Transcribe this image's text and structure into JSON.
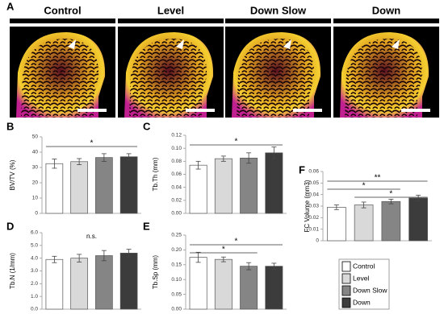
{
  "panel_a": {
    "letter": "A",
    "labels": [
      "Control",
      "Level",
      "Down Slow",
      "Down"
    ]
  },
  "groups": [
    {
      "name": "Control",
      "color": "#ffffff"
    },
    {
      "name": "Level",
      "color": "#d9d9d9"
    },
    {
      "name": "Down Slow",
      "color": "#858585"
    },
    {
      "name": "Down",
      "color": "#3c3c3c"
    }
  ],
  "chart_data": [
    {
      "type": "bar",
      "panel": "B",
      "ylabel": "BV/TV (%)",
      "values": [
        32.5,
        33.8,
        36.5,
        37
      ],
      "errors": [
        3,
        2,
        2.5,
        2
      ],
      "ylim": [
        0,
        50
      ],
      "yticks": [
        0,
        10,
        20,
        30,
        40,
        50
      ],
      "significance": [
        {
          "from": 0,
          "to": 3,
          "label": "*"
        }
      ]
    },
    {
      "type": "bar",
      "panel": "C",
      "ylabel": "Tb.Th (mm)",
      "values": [
        0.074,
        0.084,
        0.085,
        0.093
      ],
      "errors": [
        0.006,
        0.004,
        0.008,
        0.009
      ],
      "ylim": [
        0,
        0.12
      ],
      "yticks": [
        {
          "value": 0,
          "label": "0.00"
        },
        {
          "value": 0.02,
          "label": "0.02"
        },
        {
          "value": 0.04,
          "label": "0.04"
        },
        {
          "value": 0.06,
          "label": "0.06"
        },
        {
          "value": 0.08,
          "label": "0.08"
        },
        {
          "value": 0.1,
          "label": "0.10"
        },
        {
          "value": 0.12,
          "label": "0.12"
        }
      ],
      "significance": [
        {
          "from": 0,
          "to": 3,
          "label": "*"
        }
      ]
    },
    {
      "type": "bar",
      "panel": "D",
      "ylabel": "Tb.N (1/mm)",
      "values": [
        3.9,
        4.0,
        4.2,
        4.4
      ],
      "errors": [
        0.25,
        0.3,
        0.4,
        0.3
      ],
      "ylim": [
        0,
        6
      ],
      "yticks": [
        {
          "value": 0,
          "label": "0.0"
        },
        {
          "value": 1,
          "label": "1.0"
        },
        {
          "value": 2,
          "label": "2.0"
        },
        {
          "value": 3,
          "label": "3.0"
        },
        {
          "value": 4,
          "label": "4.0"
        },
        {
          "value": 5,
          "label": "5.0"
        },
        {
          "value": 6,
          "label": "6.0"
        }
      ],
      "annotation": "n.s.",
      "significance": []
    },
    {
      "type": "bar",
      "panel": "E",
      "ylabel": "Tb.Sp (mm)",
      "values": [
        0.175,
        0.168,
        0.145,
        0.145
      ],
      "errors": [
        0.017,
        0.008,
        0.012,
        0.01
      ],
      "ylim": [
        0,
        0.25
      ],
      "yticks": [
        {
          "value": 0,
          "label": "0.00"
        },
        {
          "value": 0.05,
          "label": "0.05"
        },
        {
          "value": 0.1,
          "label": "0.10"
        },
        {
          "value": 0.15,
          "label": "0.15"
        },
        {
          "value": 0.2,
          "label": "0.20"
        },
        {
          "value": 0.25,
          "label": "0.25"
        }
      ],
      "significance": [
        {
          "from": 0,
          "to": 3,
          "label": "*"
        },
        {
          "from": 0,
          "to": 2,
          "label": "*"
        }
      ]
    },
    {
      "type": "bar",
      "panel": "F",
      "ylabel": "FC Volume (mm3)",
      "values": [
        0.029,
        0.031,
        0.034,
        0.037
      ],
      "errors": [
        0.002,
        0.0025,
        0.002,
        0.0025
      ],
      "ylim": [
        0,
        0.06
      ],
      "yticks": [
        0,
        0.01,
        0.02,
        0.03,
        0.04,
        0.05,
        0.06
      ],
      "significance": [
        {
          "from": 0,
          "to": 3,
          "label": "**"
        },
        {
          "from": 0,
          "to": 2,
          "label": "*"
        },
        {
          "from": 1,
          "to": 3,
          "label": "*"
        }
      ]
    }
  ]
}
